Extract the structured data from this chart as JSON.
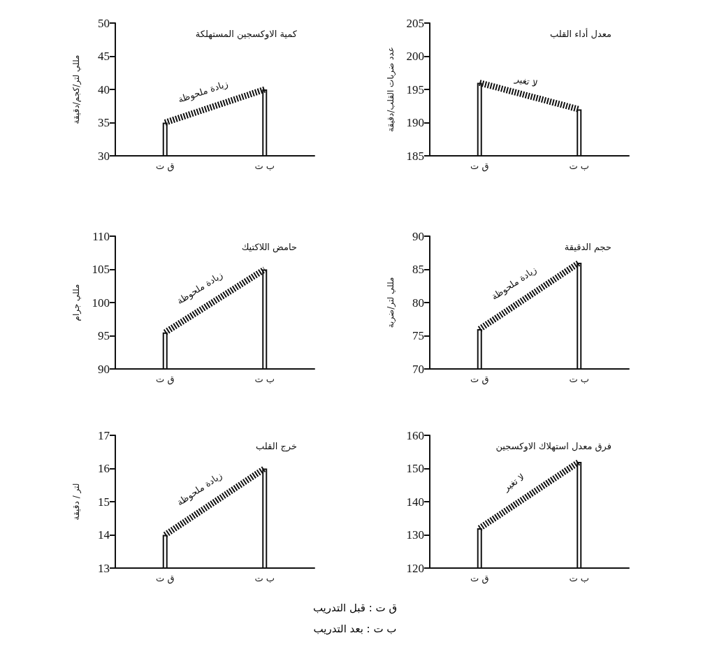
{
  "chart_data": [
    {
      "type": "bar",
      "title": "كمية الاوكسجين المستهلكة",
      "ylabel": "مللي لتر/كجم/دقيقة",
      "categories": [
        "ق ت",
        "ب ت"
      ],
      "ylim": [
        30,
        50
      ],
      "yticks": [
        30,
        35,
        40,
        45,
        50
      ],
      "marker": "none",
      "line_style": "dashed",
      "annotations": [
        "زيادة ملحوظة"
      ],
      "series": [
        {
          "color": "#111111",
          "values": [
            35,
            40
          ]
        },
        {
          "type": "line",
          "color": "#111111",
          "values": [
            35,
            40
          ]
        }
      ]
    },
    {
      "type": "bar",
      "title": "معدل أداء القلب",
      "ylabel": "عدد ضربات القلب/دقيقة",
      "categories": [
        "ق ت",
        "ب ت"
      ],
      "ylim": [
        185,
        205
      ],
      "yticks": [
        185,
        190,
        195,
        200,
        205
      ],
      "marker": "none",
      "line_style": "dashed",
      "annotations": [
        "لا تغير"
      ],
      "series": [
        {
          "color": "#111111",
          "values": [
            196,
            192
          ]
        },
        {
          "type": "line",
          "color": "#111111",
          "values": [
            196,
            192
          ]
        }
      ]
    },
    {
      "type": "bar",
      "title": "حامض اللاكتيك",
      "ylabel": "مللي جرام",
      "categories": [
        "ق ت",
        "ب ت"
      ],
      "ylim": [
        90,
        110
      ],
      "yticks": [
        90,
        95,
        100,
        105,
        110
      ],
      "marker": "none",
      "line_style": "dashed",
      "annotations": [
        "زيادة ملحوظة"
      ],
      "series": [
        {
          "color": "#111111",
          "values": [
            95.5,
            105
          ]
        },
        {
          "type": "line",
          "color": "#111111",
          "values": [
            95.5,
            105
          ]
        }
      ]
    },
    {
      "type": "bar",
      "title": "حجم الدقيقة",
      "ylabel": "مللي لتر/ضربة",
      "categories": [
        "ق ت",
        "ب ت"
      ],
      "ylim": [
        70,
        90
      ],
      "yticks": [
        70,
        75,
        80,
        85,
        90
      ],
      "marker": "none",
      "line_style": "dashed",
      "annotations": [
        "زيادة ملحوظة"
      ],
      "series": [
        {
          "color": "#111111",
          "values": [
            76,
            86
          ]
        },
        {
          "type": "line",
          "color": "#111111",
          "values": [
            76,
            86
          ]
        }
      ]
    },
    {
      "type": "bar",
      "title": "خرج القلب",
      "ylabel": "لتر / دقيقة",
      "categories": [
        "ق ت",
        "ب ت"
      ],
      "ylim": [
        13,
        17
      ],
      "yticks": [
        13,
        14,
        15,
        16,
        17
      ],
      "marker": "none",
      "line_style": "dashed",
      "annotations": [
        "زيادة ملحوظة"
      ],
      "series": [
        {
          "color": "#111111",
          "values": [
            14,
            16
          ]
        },
        {
          "type": "line",
          "color": "#111111",
          "values": [
            14,
            16
          ]
        }
      ]
    },
    {
      "type": "bar",
      "title": "فرق معدل استهلاك الاوكسجين",
      "categories": [
        "ق ت",
        "ب ت"
      ],
      "ylim": [
        120,
        160
      ],
      "yticks": [
        120,
        130,
        140,
        150,
        160
      ],
      "marker": "none",
      "line_style": "dashed",
      "annotations": [
        "لا تغير"
      ],
      "series": [
        {
          "color": "#111111",
          "values": [
            132,
            152
          ]
        },
        {
          "type": "line",
          "color": "#111111",
          "values": [
            132,
            152
          ]
        }
      ]
    },
    {
      "type": "other",
      "annotations": [
        "ق ت : قبل التدريب",
        "ب ت : بعد التدريب"
      ]
    }
  ]
}
